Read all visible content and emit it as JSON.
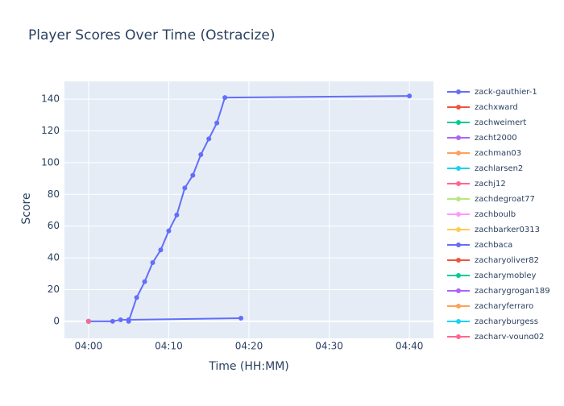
{
  "chart_data": {
    "type": "line",
    "title": "Player Scores Over Time (Ostracize)",
    "x_label": "Time (HH:MM)",
    "y_label": "Score",
    "xlim": [
      "03:57",
      "04:43"
    ],
    "xticks": [
      "04:00",
      "04:10",
      "04:20",
      "04:30",
      "04:40"
    ],
    "ylim": [
      -10.7,
      151.2
    ],
    "yticks": [
      0,
      20,
      40,
      60,
      80,
      100,
      120,
      140
    ],
    "grid": true,
    "series": [
      {
        "name": "zack-gauthier-1",
        "color": "#636efa",
        "x": [
          "04:05",
          "04:06",
          "04:07",
          "04:08",
          "04:09",
          "04:10",
          "04:11",
          "04:12",
          "04:13",
          "04:14",
          "04:15",
          "04:16",
          "04:17",
          "04:40"
        ],
        "values": [
          0,
          15,
          25,
          37,
          45,
          57,
          67,
          84,
          92,
          105,
          115,
          125,
          141,
          142
        ]
      },
      {
        "name": "zachxward",
        "color": "#EF553B",
        "x": [
          "04:00"
        ],
        "values": [
          0
        ]
      },
      {
        "name": "zachweimert",
        "color": "#00cc96",
        "x": [
          "04:00"
        ],
        "values": [
          0
        ]
      },
      {
        "name": "zacht2000",
        "color": "#ab63fa",
        "x": [
          "04:00"
        ],
        "values": [
          0
        ]
      },
      {
        "name": "zachman03",
        "color": "#FFA15A",
        "x": [
          "04:00"
        ],
        "values": [
          0
        ]
      },
      {
        "name": "zachlarsen2",
        "color": "#19d3f3",
        "x": [
          "04:00"
        ],
        "values": [
          0
        ]
      },
      {
        "name": "zachj12",
        "color": "#FF6692",
        "x": [
          "04:00"
        ],
        "values": [
          0
        ]
      },
      {
        "name": "zachdegroat77",
        "color": "#B6E880",
        "x": [
          "04:00"
        ],
        "values": [
          0
        ]
      },
      {
        "name": "zachboulb",
        "color": "#FF97FF",
        "x": [
          "04:00"
        ],
        "values": [
          0
        ]
      },
      {
        "name": "zachbarker0313",
        "color": "#FECB52",
        "x": [
          "04:00"
        ],
        "values": [
          0
        ]
      },
      {
        "name": "zachbaca",
        "color": "#636efa",
        "x": [
          "04:00",
          "04:03",
          "04:04",
          "04:05",
          "04:19"
        ],
        "values": [
          0,
          0,
          1,
          1,
          2
        ]
      },
      {
        "name": "zacharyoliver82",
        "color": "#EF553B",
        "x": [
          "04:00"
        ],
        "values": [
          0
        ]
      },
      {
        "name": "zacharymobley",
        "color": "#00cc96",
        "x": [
          "04:00"
        ],
        "values": [
          0
        ]
      },
      {
        "name": "zacharygrogan189",
        "color": "#ab63fa",
        "x": [
          "04:00"
        ],
        "values": [
          0
        ]
      },
      {
        "name": "zacharyferraro",
        "color": "#FFA15A",
        "x": [
          "04:00"
        ],
        "values": [
          0
        ]
      },
      {
        "name": "zacharyburgess",
        "color": "#19d3f3",
        "x": [
          "04:00"
        ],
        "values": [
          0
        ]
      },
      {
        "name": "zachary-young02",
        "color": "#FF6692",
        "x": [
          "04:00"
        ],
        "values": [
          0
        ]
      }
    ]
  }
}
